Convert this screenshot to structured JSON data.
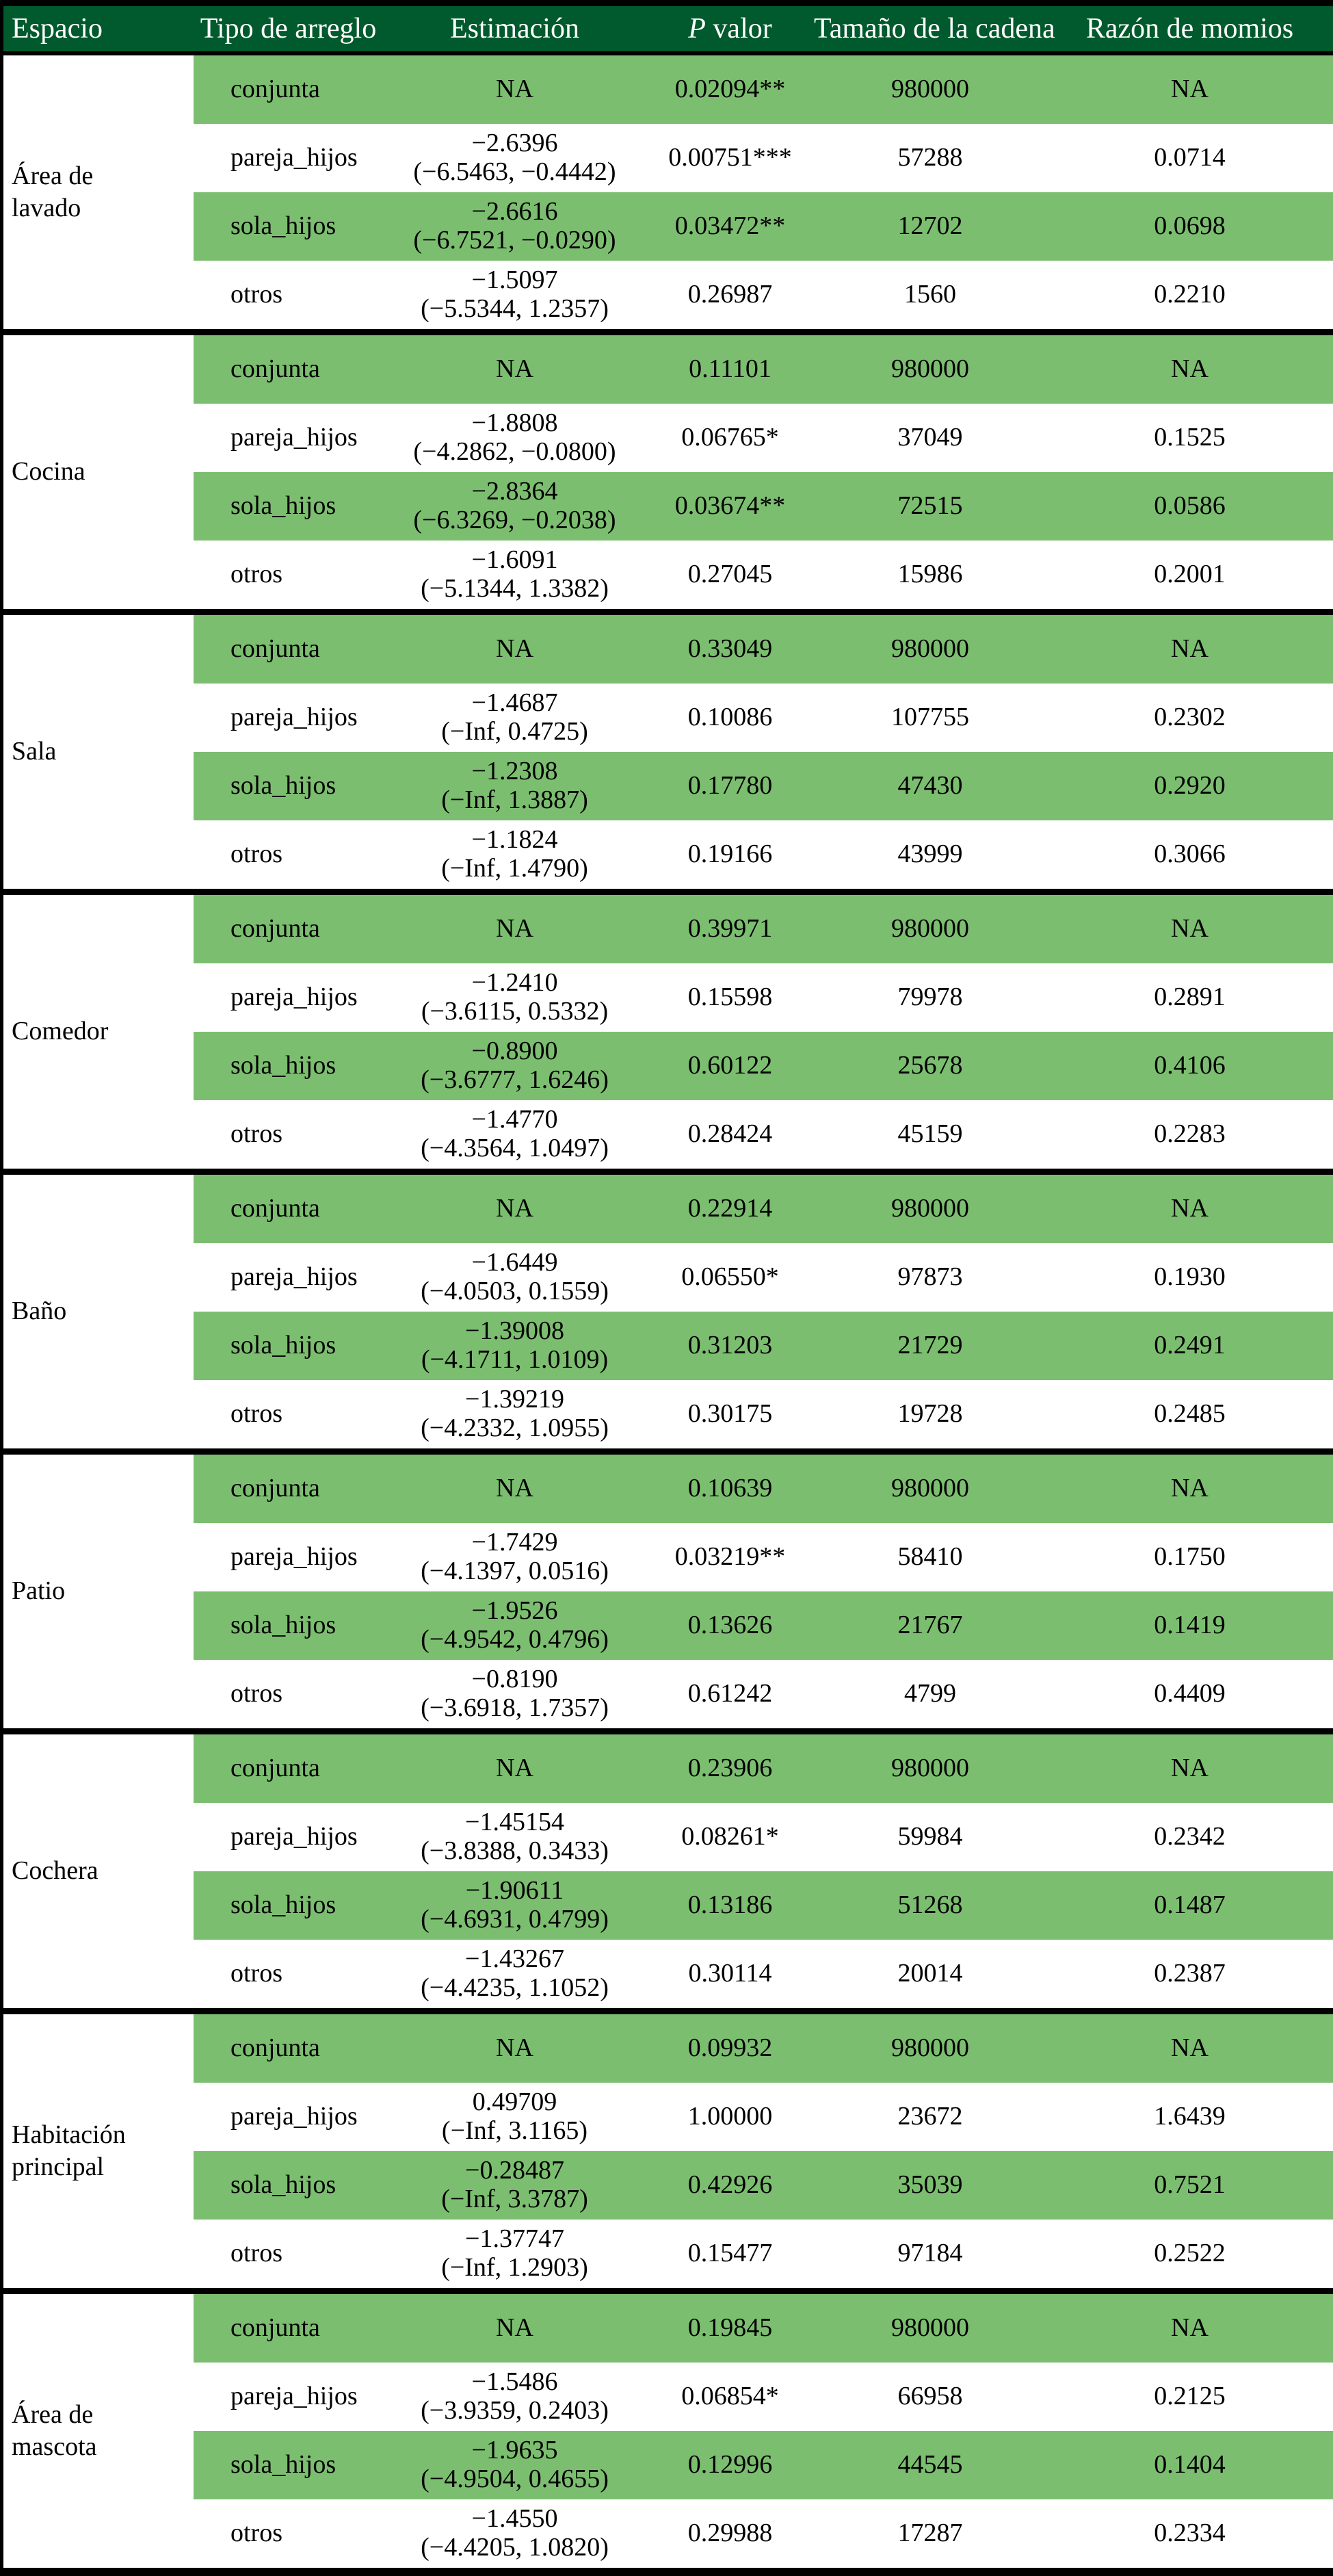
{
  "colors": {
    "header_bg": "#005a2d",
    "stripe_green": "#7cbe70",
    "row_white": "#ffffff",
    "border": "#000000",
    "header_text": "#ffffff",
    "body_text": "#000000"
  },
  "table": {
    "header": {
      "espacio": "Espacio",
      "tipo": "Tipo de arreglo",
      "estimacion": "Estimación",
      "p_prefix": "P",
      "p_suffix": " valor",
      "tamano": "Tamaño de la cadena",
      "razon": "Razón de momios"
    },
    "groups": [
      {
        "espacio": "Área de lavado",
        "rows": [
          {
            "tipo": "conjunta",
            "estimacion": [
              "NA"
            ],
            "p_valor": "0.02094**",
            "cadena": "980000",
            "razon": "NA"
          },
          {
            "tipo": "pareja_hijos",
            "estimacion": [
              "−2.6396",
              "(−6.5463, −0.4442)"
            ],
            "p_valor": "0.00751***",
            "cadena": "57288",
            "razon": "0.0714"
          },
          {
            "tipo": "sola_hijos",
            "estimacion": [
              "−2.6616",
              "(−6.7521, −0.0290)"
            ],
            "p_valor": "0.03472**",
            "cadena": "12702",
            "razon": "0.0698"
          },
          {
            "tipo": "otros",
            "estimacion": [
              "−1.5097",
              "(−5.5344, 1.2357)"
            ],
            "p_valor": "0.26987",
            "cadena": "1560",
            "razon": "0.2210"
          }
        ]
      },
      {
        "espacio": "Cocina",
        "rows": [
          {
            "tipo": "conjunta",
            "estimacion": [
              "NA"
            ],
            "p_valor": "0.11101",
            "cadena": "980000",
            "razon": "NA"
          },
          {
            "tipo": "pareja_hijos",
            "estimacion": [
              "−1.8808",
              "(−4.2862, −0.0800)"
            ],
            "p_valor": "0.06765*",
            "cadena": "37049",
            "razon": "0.1525"
          },
          {
            "tipo": "sola_hijos",
            "estimacion": [
              "−2.8364",
              "(−6.3269, −0.2038)"
            ],
            "p_valor": "0.03674**",
            "cadena": "72515",
            "razon": "0.0586"
          },
          {
            "tipo": "otros",
            "estimacion": [
              "−1.6091",
              "(−5.1344, 1.3382)"
            ],
            "p_valor": "0.27045",
            "cadena": "15986",
            "razon": "0.2001"
          }
        ]
      },
      {
        "espacio": "Sala",
        "rows": [
          {
            "tipo": "conjunta",
            "estimacion": [
              "NA"
            ],
            "p_valor": "0.33049",
            "cadena": "980000",
            "razon": "NA"
          },
          {
            "tipo": "pareja_hijos",
            "estimacion": [
              "−1.4687",
              "(−Inf, 0.4725)"
            ],
            "p_valor": "0.10086",
            "cadena": "107755",
            "razon": "0.2302"
          },
          {
            "tipo": "sola_hijos",
            "estimacion": [
              "−1.2308",
              "(−Inf, 1.3887)"
            ],
            "p_valor": "0.17780",
            "cadena": "47430",
            "razon": "0.2920"
          },
          {
            "tipo": "otros",
            "estimacion": [
              "−1.1824",
              "(−Inf, 1.4790)"
            ],
            "p_valor": "0.19166",
            "cadena": "43999",
            "razon": "0.3066"
          }
        ]
      },
      {
        "espacio": "Comedor",
        "rows": [
          {
            "tipo": "conjunta",
            "estimacion": [
              "NA"
            ],
            "p_valor": "0.39971",
            "cadena": "980000",
            "razon": "NA"
          },
          {
            "tipo": "pareja_hijos",
            "estimacion": [
              "−1.2410",
              "(−3.6115, 0.5332)"
            ],
            "p_valor": "0.15598",
            "cadena": "79978",
            "razon": "0.2891"
          },
          {
            "tipo": "sola_hijos",
            "estimacion": [
              "−0.8900",
              "(−3.6777, 1.6246)"
            ],
            "p_valor": "0.60122",
            "cadena": "25678",
            "razon": "0.4106"
          },
          {
            "tipo": "otros",
            "estimacion": [
              "−1.4770",
              "(−4.3564, 1.0497)"
            ],
            "p_valor": "0.28424",
            "cadena": "45159",
            "razon": "0.2283"
          }
        ]
      },
      {
        "espacio": "Baño",
        "rows": [
          {
            "tipo": "conjunta",
            "estimacion": [
              "NA"
            ],
            "p_valor": "0.22914",
            "cadena": "980000",
            "razon": "NA"
          },
          {
            "tipo": "pareja_hijos",
            "estimacion": [
              "−1.6449",
              "(−4.0503, 0.1559)"
            ],
            "p_valor": "0.06550*",
            "cadena": "97873",
            "razon": "0.1930"
          },
          {
            "tipo": "sola_hijos",
            "estimacion": [
              "−1.39008",
              "(−4.1711, 1.0109)"
            ],
            "p_valor": "0.31203",
            "cadena": "21729",
            "razon": "0.2491"
          },
          {
            "tipo": "otros",
            "estimacion": [
              "−1.39219",
              "(−4.2332, 1.0955)"
            ],
            "p_valor": "0.30175",
            "cadena": "19728",
            "razon": "0.2485"
          }
        ]
      },
      {
        "espacio": "Patio",
        "rows": [
          {
            "tipo": "conjunta",
            "estimacion": [
              "NA"
            ],
            "p_valor": "0.10639",
            "cadena": "980000",
            "razon": "NA"
          },
          {
            "tipo": "pareja_hijos",
            "estimacion": [
              "−1.7429",
              "(−4.1397, 0.0516)"
            ],
            "p_valor": "0.03219**",
            "cadena": "58410",
            "razon": "0.1750"
          },
          {
            "tipo": "sola_hijos",
            "estimacion": [
              "−1.9526",
              "(−4.9542, 0.4796)"
            ],
            "p_valor": "0.13626",
            "cadena": "21767",
            "razon": "0.1419"
          },
          {
            "tipo": "otros",
            "estimacion": [
              "−0.8190",
              "(−3.6918, 1.7357)"
            ],
            "p_valor": "0.61242",
            "cadena": "4799",
            "razon": "0.4409"
          }
        ]
      },
      {
        "espacio": "Cochera",
        "rows": [
          {
            "tipo": "conjunta",
            "estimacion": [
              "NA"
            ],
            "p_valor": "0.23906",
            "cadena": "980000",
            "razon": "NA"
          },
          {
            "tipo": "pareja_hijos",
            "estimacion": [
              "−1.45154",
              "(−3.8388, 0.3433)"
            ],
            "p_valor": "0.08261*",
            "cadena": "59984",
            "razon": "0.2342"
          },
          {
            "tipo": "sola_hijos",
            "estimacion": [
              "−1.90611",
              "(−4.6931, 0.4799)"
            ],
            "p_valor": "0.13186",
            "cadena": "51268",
            "razon": "0.1487"
          },
          {
            "tipo": "otros",
            "estimacion": [
              "−1.43267",
              "(−4.4235, 1.1052)"
            ],
            "p_valor": "0.30114",
            "cadena": "20014",
            "razon": "0.2387"
          }
        ]
      },
      {
        "espacio": "Habitación principal",
        "rows": [
          {
            "tipo": "conjunta",
            "estimacion": [
              "NA"
            ],
            "p_valor": "0.09932",
            "cadena": "980000",
            "razon": "NA"
          },
          {
            "tipo": "pareja_hijos",
            "estimacion": [
              "0.49709",
              "(−Inf, 3.1165)"
            ],
            "p_valor": "1.00000",
            "cadena": "23672",
            "razon": "1.6439"
          },
          {
            "tipo": "sola_hijos",
            "estimacion": [
              "−0.28487",
              "(−Inf, 3.3787)"
            ],
            "p_valor": "0.42926",
            "cadena": "35039",
            "razon": "0.7521"
          },
          {
            "tipo": "otros",
            "estimacion": [
              "−1.37747",
              "(−Inf, 1.2903)"
            ],
            "p_valor": "0.15477",
            "cadena": "97184",
            "razon": "0.2522"
          }
        ]
      },
      {
        "espacio": "Área de mascota",
        "rows": [
          {
            "tipo": "conjunta",
            "estimacion": [
              "NA"
            ],
            "p_valor": "0.19845",
            "cadena": "980000",
            "razon": "NA"
          },
          {
            "tipo": "pareja_hijos",
            "estimacion": [
              "−1.5486",
              "(−3.9359, 0.2403)"
            ],
            "p_valor": "0.06854*",
            "cadena": "66958",
            "razon": "0.2125"
          },
          {
            "tipo": "sola_hijos",
            "estimacion": [
              "−1.9635",
              "(−4.9504, 0.4655)"
            ],
            "p_valor": "0.12996",
            "cadena": "44545",
            "razon": "0.1404"
          },
          {
            "tipo": "otros",
            "estimacion": [
              "−1.4550",
              "(−4.4205, 1.0820)"
            ],
            "p_valor": "0.29988",
            "cadena": "17287",
            "razon": "0.2334"
          }
        ]
      }
    ]
  }
}
